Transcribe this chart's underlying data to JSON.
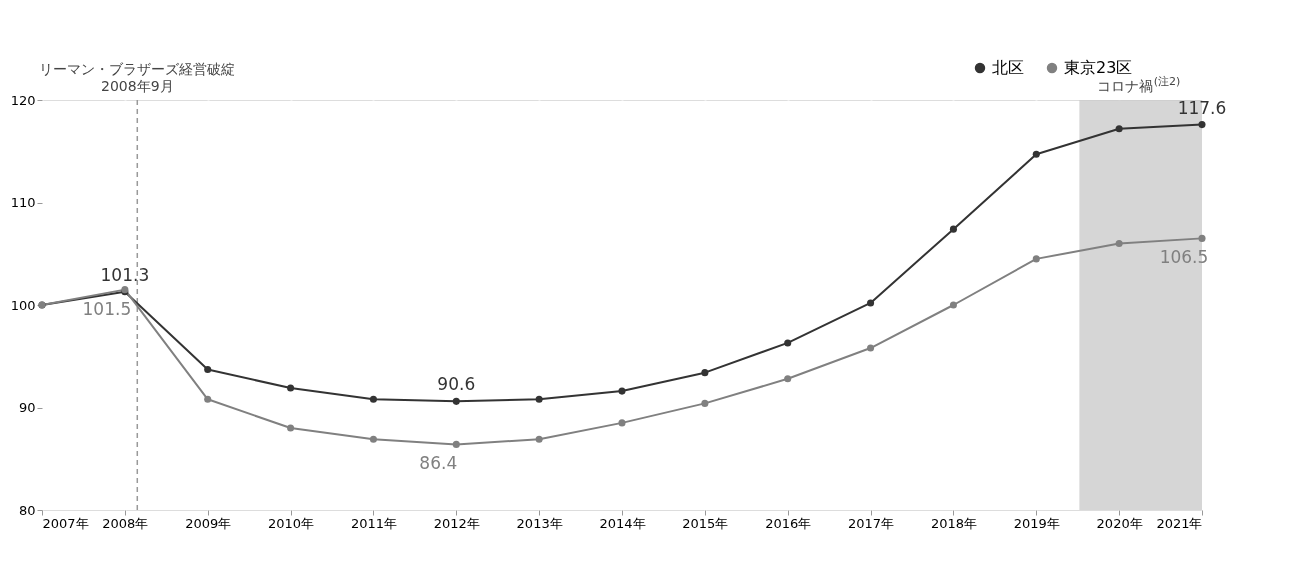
{
  "chart_data": {
    "type": "line",
    "x": [
      2007,
      2008,
      2009,
      2010,
      2011,
      2012,
      2013,
      2014,
      2015,
      2016,
      2017,
      2018,
      2019,
      2020,
      2021
    ],
    "series": [
      {
        "name": "北区",
        "color": "#333333",
        "values": [
          100,
          101.3,
          93.7,
          91.9,
          90.8,
          90.6,
          90.8,
          91.6,
          93.4,
          96.3,
          100.2,
          107.4,
          114.7,
          117.2,
          117.6
        ],
        "value_labels": [
          null,
          "101.3",
          null,
          null,
          null,
          "90.6",
          null,
          null,
          null,
          null,
          null,
          null,
          null,
          null,
          "117.6"
        ]
      },
      {
        "name": "東京23区",
        "color": "#808080",
        "values": [
          100,
          101.5,
          90.8,
          88.0,
          86.9,
          86.4,
          86.9,
          88.5,
          90.4,
          92.8,
          95.8,
          100.0,
          104.5,
          106.0,
          106.5
        ],
        "value_labels": [
          null,
          "101.5",
          null,
          null,
          null,
          "86.4",
          null,
          null,
          null,
          null,
          null,
          null,
          null,
          null,
          "106.5"
        ]
      }
    ],
    "xlim": [
      2007,
      2021
    ],
    "xticks": [
      {
        "value": 2007,
        "label": "2007年"
      },
      {
        "value": 2008,
        "label": "2008年"
      },
      {
        "value": 2009,
        "label": "2009年"
      },
      {
        "value": 2010,
        "label": "2010年"
      },
      {
        "value": 2011,
        "label": "2011年"
      },
      {
        "value": 2012,
        "label": "2012年"
      },
      {
        "value": 2013,
        "label": "2013年"
      },
      {
        "value": 2014,
        "label": "2014年"
      },
      {
        "value": 2015,
        "label": "2015年"
      },
      {
        "value": 2016,
        "label": "2016年"
      },
      {
        "value": 2017,
        "label": "2017年"
      },
      {
        "value": 2018,
        "label": "2018年"
      },
      {
        "value": 2019,
        "label": "2019年"
      },
      {
        "value": 2020,
        "label": "2020年"
      },
      {
        "value": 2021,
        "label": "2021年"
      }
    ],
    "ylim": [
      80,
      120
    ],
    "yticks": [
      80,
      90,
      100,
      110,
      120
    ],
    "ref_lines": [
      {
        "axis": "x",
        "value": 2008.15,
        "label": "リーマン・ブラザーズ経営破綻\n2008年9月",
        "color": "#999999",
        "line_style": "dashed"
      }
    ],
    "bands": [
      {
        "axis": "x",
        "from": 2019.52,
        "to": 2021,
        "label": "コロナ禍$^{(注2)}$",
        "color": "#cccccc"
      }
    ],
    "grid": "x",
    "legend": "top right",
    "marker": "circle",
    "line_style": "solid"
  }
}
